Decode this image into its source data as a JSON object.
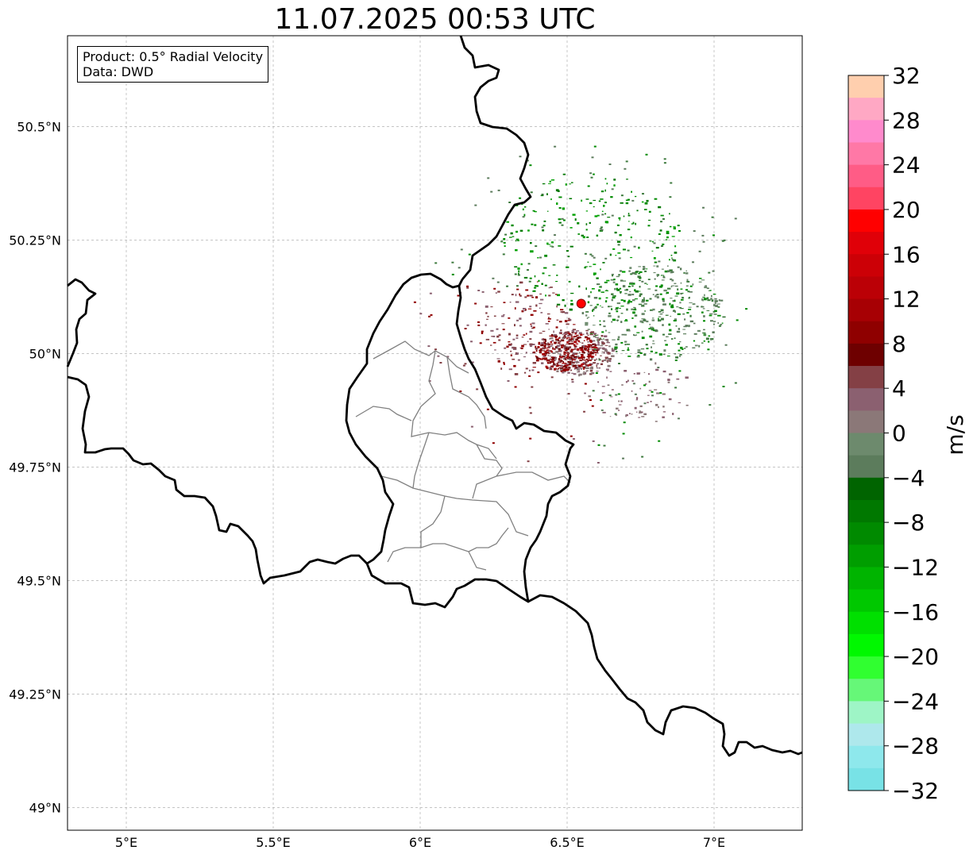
{
  "title": "11.07.2025 00:53 UTC",
  "info": {
    "product_line": "Product: 0.5° Radial Velocity",
    "data_line": "Data: DWD"
  },
  "map": {
    "lon_range": [
      4.8,
      7.3
    ],
    "lat_range": [
      48.95,
      50.7
    ],
    "lat_ticks": [
      {
        "value": 50.5,
        "label": "50.5°N"
      },
      {
        "value": 50.25,
        "label": "50.25°N"
      },
      {
        "value": 50.0,
        "label": "50°N"
      },
      {
        "value": 49.75,
        "label": "49.75°N"
      },
      {
        "value": 49.5,
        "label": "49.5°N"
      },
      {
        "value": 49.25,
        "label": "49.25°N"
      },
      {
        "value": 49.0,
        "label": "49°N"
      }
    ],
    "lon_ticks": [
      {
        "value": 5.0,
        "label": "5°E"
      },
      {
        "value": 5.5,
        "label": "5.5°E"
      },
      {
        "value": 6.0,
        "label": "6°E"
      },
      {
        "value": 6.5,
        "label": "6.5°E"
      },
      {
        "value": 7.0,
        "label": "7°E"
      }
    ],
    "radar_site": {
      "lon": 6.548,
      "lat": 50.11
    },
    "colors": {
      "border": "#000000",
      "admin": "#808080",
      "grid": "#b0b0b0",
      "radar_marker": "#ff0000"
    }
  },
  "colorbar": {
    "unit": "m/s",
    "min": -32,
    "max": 32,
    "tick_labels": [
      "32",
      "28",
      "24",
      "20",
      "16",
      "12",
      "8",
      "4",
      "0",
      "−4",
      "−8",
      "−12",
      "−16",
      "−20",
      "−24",
      "−28",
      "−32"
    ],
    "colors_top_to_bottom": [
      "#ffcfae",
      "#ffa8c4",
      "#ff8acc",
      "#ff78a6",
      "#ff5c86",
      "#ff4462",
      "#ff0000",
      "#e00008",
      "#cc0006",
      "#bb0006",
      "#a70004",
      "#8f0000",
      "#6e0000",
      "#844045",
      "#8b6070",
      "#8b7878",
      "#6d8a6d",
      "#5c7c5c",
      "#006400",
      "#007800",
      "#008a00",
      "#009e00",
      "#00b400",
      "#00c800",
      "#00e000",
      "#00f800",
      "#30ff30",
      "#66f778",
      "#9ef5c6",
      "#aee8ec",
      "#8ee8ec",
      "#78e2e6"
    ]
  }
}
